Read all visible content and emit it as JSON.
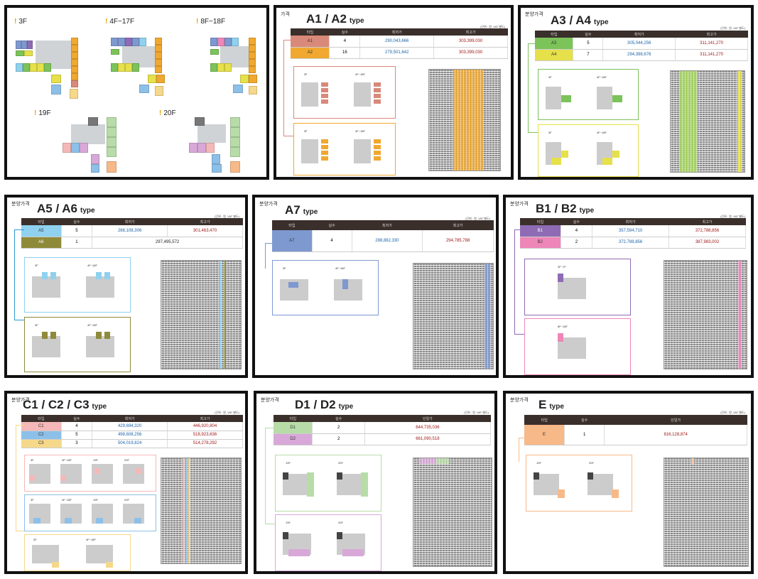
{
  "overview": {
    "floors": [
      {
        "label": "3F"
      },
      {
        "label": "4F~17F"
      },
      {
        "label": "8F~18F"
      },
      {
        "label": "19F"
      },
      {
        "label": "20F"
      }
    ]
  },
  "panels": {
    "a1a2": {
      "label": "가격",
      "title": "A1 / A2",
      "suffix": "type",
      "unit": "(단위 : 원, VAT 별도)",
      "headers": [
        "타입",
        "실수",
        "최저가",
        "최고가"
      ],
      "rows": [
        {
          "type": "A1",
          "count": "4",
          "min": "290,043,666",
          "max": "303,399,030",
          "color": "#d9897a"
        },
        {
          "type": "A2",
          "count": "16",
          "min": "279,501,642",
          "max": "303,399,030",
          "color": "#f0a830"
        }
      ],
      "plans": [
        "3F",
        "4F~18F",
        "3F",
        "4F~18F"
      ]
    },
    "a3a4": {
      "label": "분양가격",
      "title": "A3 / A4",
      "suffix": "type",
      "unit": "(단위 : 원, VAT 별도)",
      "headers": [
        "타입",
        "실수",
        "최저가",
        "최고가"
      ],
      "rows": [
        {
          "type": "A3",
          "count": "5",
          "min": "305,044,256",
          "max": "311,141,270",
          "color": "#7cc35a"
        },
        {
          "type": "A4",
          "count": "7",
          "min": "294,398,676",
          "max": "311,141,270",
          "color": "#e6e04a"
        }
      ],
      "plans": [
        "3F",
        "4F~18F",
        "3F",
        "4F~18F"
      ]
    },
    "a5a6": {
      "label": "분양가격",
      "title": "A5 / A6",
      "suffix": "type",
      "unit": "(단위 : 원, VAT 별도)",
      "headers": [
        "타입",
        "실수",
        "최저가",
        "최고가"
      ],
      "rows": [
        {
          "type": "A5",
          "count": "5",
          "min": "288,108,306",
          "max": "301,463,470",
          "color": "#8fd1ee"
        },
        {
          "type": "A6",
          "count": "1",
          "min": "297,495,572",
          "max": "",
          "color": "#8e8a3a"
        }
      ],
      "plans": [
        "3F",
        "4F~18F",
        "3F",
        "4F~18F"
      ]
    },
    "a7": {
      "label": "분양가격",
      "title": "A7",
      "suffix": "type",
      "unit": "(단위 : 원, VAT 별도)",
      "headers": [
        "타입",
        "실수",
        "최저가",
        "최고가"
      ],
      "rows": [
        {
          "type": "A7",
          "count": "4",
          "min": "288,882,330",
          "max": "294,785,788",
          "color": "#7e98d0"
        }
      ],
      "plans": [
        "3F",
        "4F~18F"
      ]
    },
    "b1b2": {
      "label": "분양가격",
      "title": "B1 / B2",
      "suffix": "type",
      "unit": "(단위 : 원, VAT 별도)",
      "headers": [
        "타입",
        "실수",
        "최저가",
        "최고가"
      ],
      "rows": [
        {
          "type": "B1",
          "count": "4",
          "min": "357,594,710",
          "max": "372,788,856",
          "color": "#8e6bb4"
        },
        {
          "type": "B2",
          "count": "2",
          "min": "372,788,856",
          "max": "387,983,002",
          "color": "#ee86b8"
        }
      ],
      "plans": [
        "3F~7F",
        "8F~18F"
      ]
    },
    "c1c3": {
      "label": "분양가격",
      "title": "C1 / C2 / C3",
      "suffix": "type",
      "unit": "(단위 : 원, VAT 별도)",
      "headers": [
        "타입",
        "실수",
        "최저가",
        "최고가"
      ],
      "rows": [
        {
          "type": "C1",
          "count": "4",
          "min": "429,694,320",
          "max": "446,920,804",
          "color": "#f5b8b8"
        },
        {
          "type": "C2",
          "count": "5",
          "min": "498,608,256",
          "max": "518,923,636",
          "color": "#8dc0e8"
        },
        {
          "type": "C3",
          "count": "3",
          "min": "504,019,824",
          "max": "514,278,292",
          "color": "#f6d88a"
        }
      ],
      "plans": [
        "3F",
        "4F~18F",
        "19F",
        "20F",
        "3F",
        "4F~18F",
        "19F",
        "20F",
        "3F",
        "4F~18F"
      ]
    },
    "d1d2": {
      "label": "분양가격",
      "title": "D1 / D2",
      "suffix": "type",
      "unit": "(단위 : 원, VAT 별도)",
      "headers": [
        "타입",
        "실수",
        "단일가"
      ],
      "rows": [
        {
          "type": "D1",
          "count": "2",
          "min": "644,735,036",
          "color": "#b8dca8"
        },
        {
          "type": "D2",
          "count": "2",
          "min": "661,090,518",
          "color": "#d8a8d8"
        }
      ],
      "plans": [
        "19F",
        "20F",
        "19F",
        "20F"
      ]
    },
    "e": {
      "label": "분양가격",
      "title": "E",
      "suffix": "type",
      "unit": "(단위 : 원, VAT 별도)",
      "headers": [
        "타입",
        "실수",
        "단일가"
      ],
      "rows": [
        {
          "type": "E",
          "count": "1",
          "min": "816,128,874",
          "color": "#f7b988"
        }
      ],
      "plans": [
        "19F",
        "20F"
      ]
    }
  },
  "colors": {
    "header": "#3a2f2b",
    "border": "#111111",
    "min": "#1a62a8",
    "max": "#a01818"
  }
}
